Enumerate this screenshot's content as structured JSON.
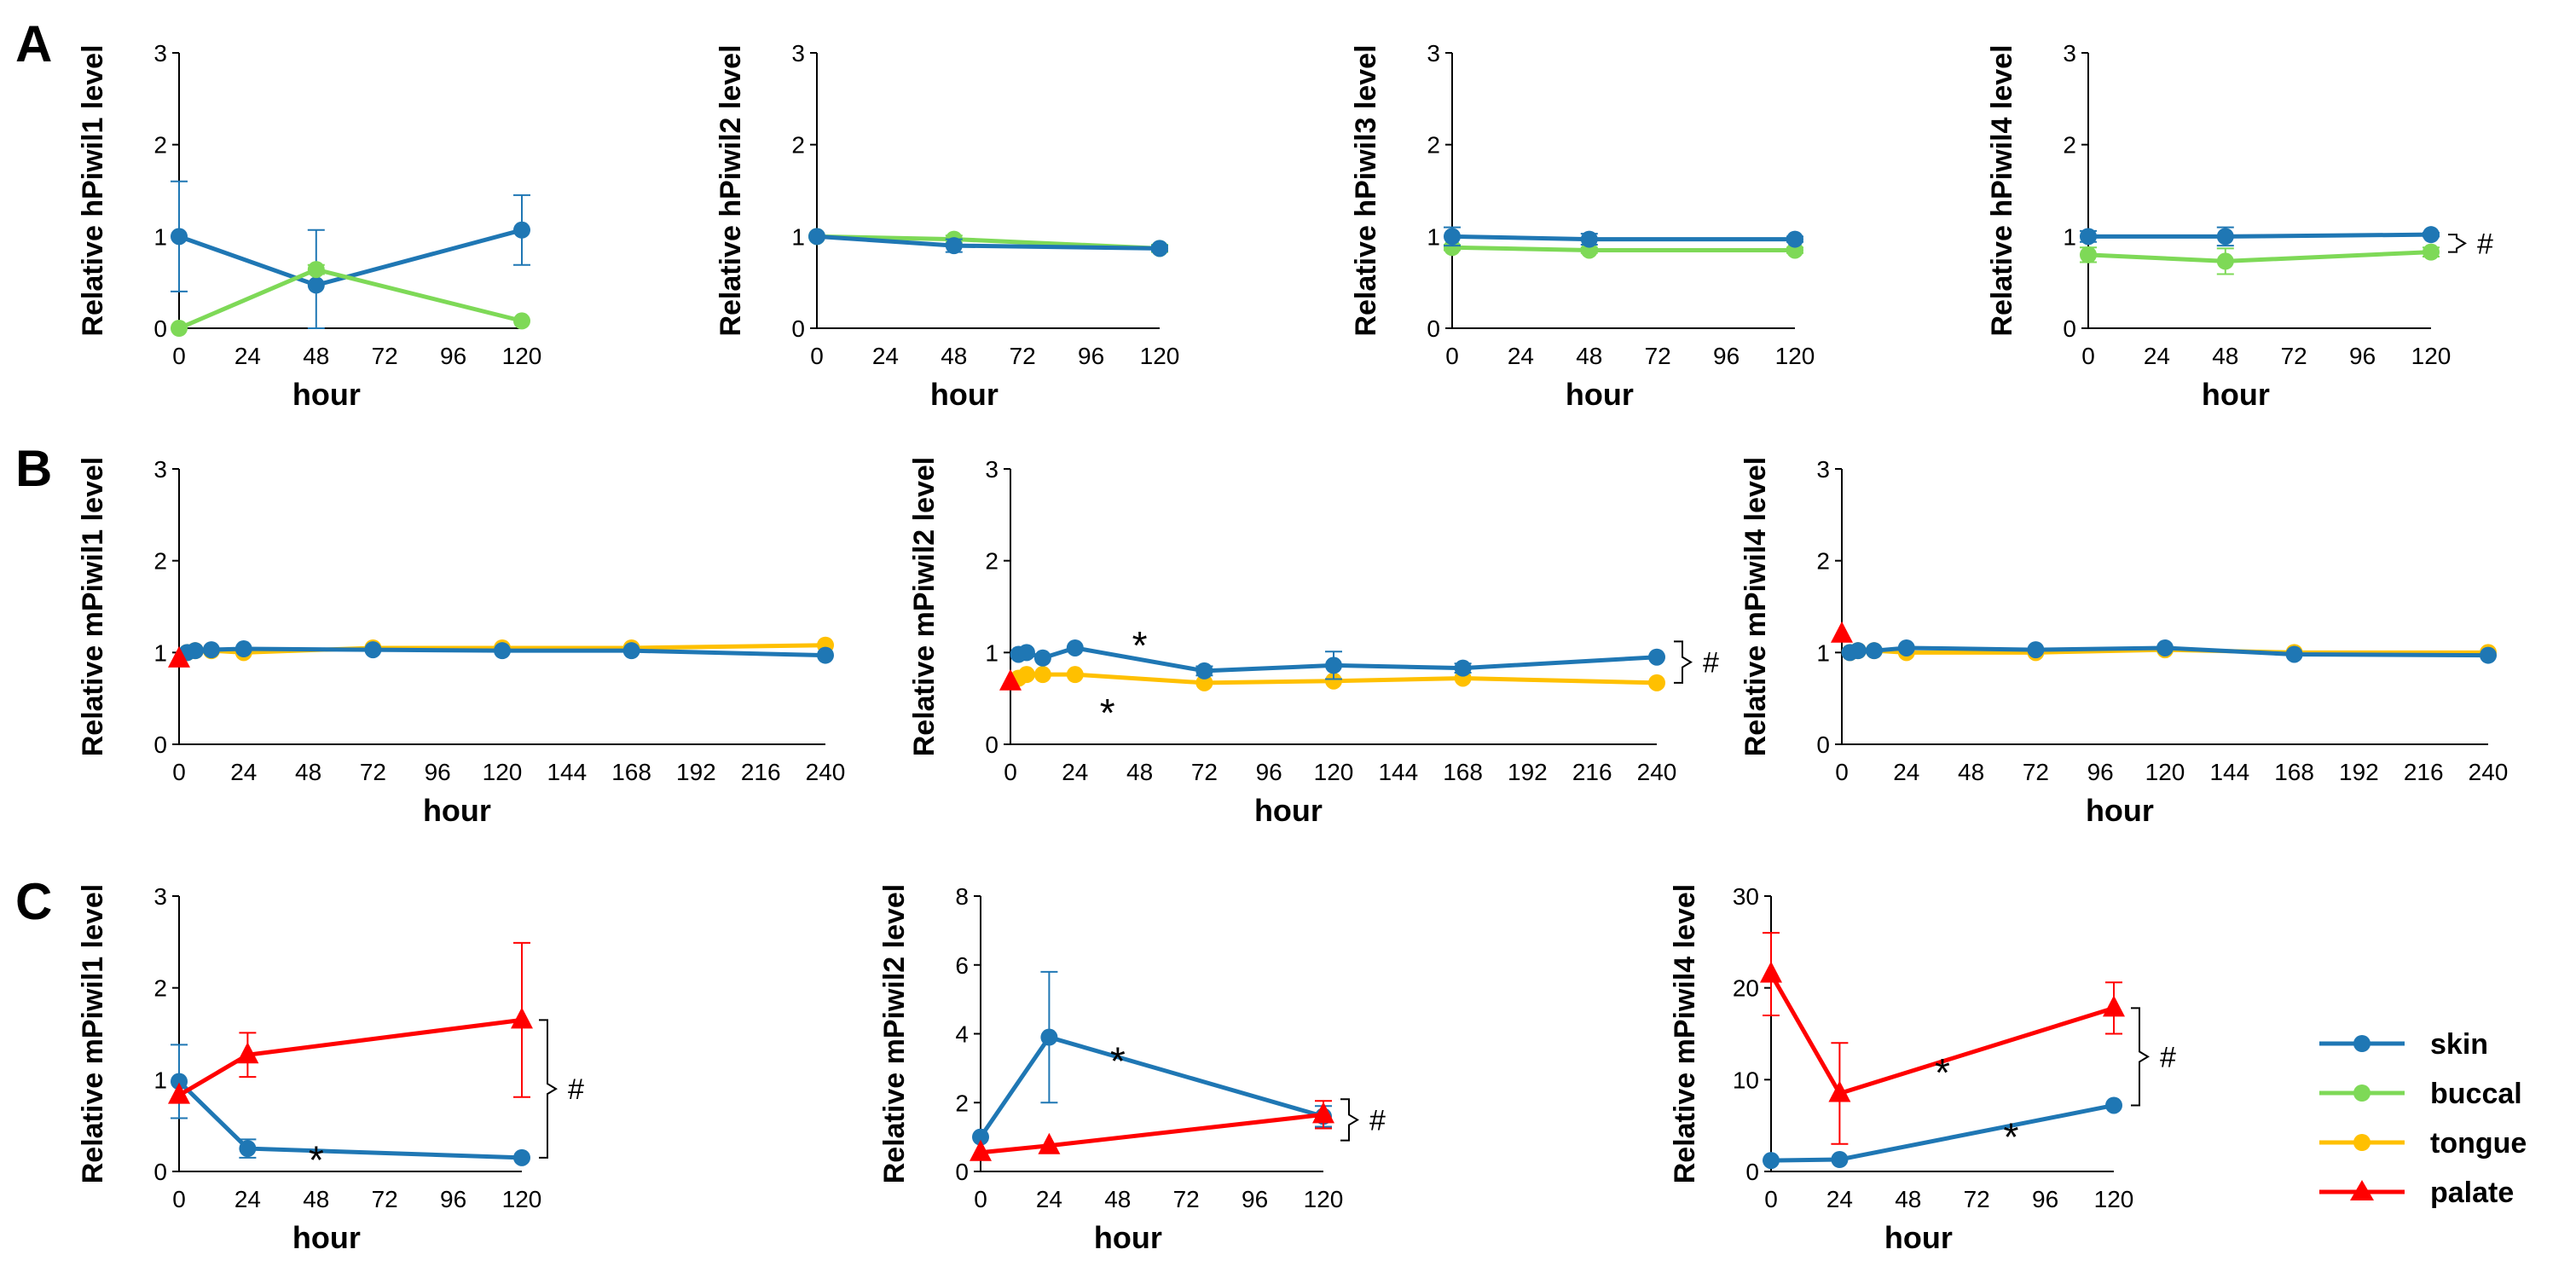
{
  "colors": {
    "skin": "#1f77b4",
    "buccal": "#7ed957",
    "tongue": "#ffc000",
    "palate": "#ff0000"
  },
  "panel_labels": [
    "A",
    "B",
    "C"
  ],
  "legend": [
    {
      "key": "skin",
      "label": "skin",
      "marker": "circle"
    },
    {
      "key": "buccal",
      "label": "buccal",
      "marker": "circle"
    },
    {
      "key": "tongue",
      "label": "tongue",
      "marker": "circle"
    },
    {
      "key": "palate",
      "label": "palate",
      "marker": "triangle"
    }
  ],
  "chart_data": [
    {
      "id": "A1",
      "type": "line",
      "ylabel": "Relative hPiwil1 level",
      "xlabel": "hour",
      "xlim": [
        0,
        120
      ],
      "xticks": [
        0,
        24,
        48,
        72,
        96,
        120
      ],
      "ylim": [
        0,
        3
      ],
      "yticks": [
        0,
        1,
        2,
        3
      ],
      "series": [
        {
          "name": "skin",
          "x": [
            0,
            48,
            120
          ],
          "y": [
            1.0,
            0.47,
            1.07
          ],
          "err": [
            0.6,
            0.6,
            0.38
          ]
        },
        {
          "name": "buccal",
          "x": [
            0,
            48,
            120
          ],
          "y": [
            0.0,
            0.64,
            0.08
          ],
          "err": [
            0,
            0.05,
            0
          ]
        }
      ],
      "annotations": []
    },
    {
      "id": "A2",
      "type": "line",
      "ylabel": "Relative hPiwil2 level",
      "xlabel": "hour",
      "xlim": [
        0,
        120
      ],
      "xticks": [
        0,
        24,
        48,
        72,
        96,
        120
      ],
      "ylim": [
        0,
        3
      ],
      "yticks": [
        0,
        1,
        2,
        3
      ],
      "series": [
        {
          "name": "buccal",
          "x": [
            0,
            48,
            120
          ],
          "y": [
            1.0,
            0.97,
            0.87
          ],
          "err": [
            0,
            0.04,
            0.04
          ]
        },
        {
          "name": "skin",
          "x": [
            0,
            48,
            120
          ],
          "y": [
            1.0,
            0.9,
            0.87
          ],
          "err": [
            0,
            0.07,
            0.03
          ]
        }
      ],
      "annotations": []
    },
    {
      "id": "A3",
      "type": "line",
      "ylabel": "Relative hPiwil3 level",
      "xlabel": "hour",
      "xlim": [
        0,
        120
      ],
      "xticks": [
        0,
        24,
        48,
        72,
        96,
        120
      ],
      "ylim": [
        0,
        3
      ],
      "yticks": [
        0,
        1,
        2,
        3
      ],
      "series": [
        {
          "name": "buccal",
          "x": [
            0,
            48,
            120
          ],
          "y": [
            0.88,
            0.85,
            0.85
          ],
          "err": [
            0.03,
            0.03,
            0.03
          ]
        },
        {
          "name": "skin",
          "x": [
            0,
            48,
            120
          ],
          "y": [
            1.0,
            0.97,
            0.97
          ],
          "err": [
            0.1,
            0.06,
            0.03
          ]
        }
      ],
      "annotations": []
    },
    {
      "id": "A4",
      "type": "line",
      "ylabel": "Relative hPiwil4 level",
      "xlabel": "hour",
      "xlim": [
        0,
        120
      ],
      "xticks": [
        0,
        24,
        48,
        72,
        96,
        120
      ],
      "ylim": [
        0,
        3
      ],
      "yticks": [
        0,
        1,
        2,
        3
      ],
      "series": [
        {
          "name": "buccal",
          "x": [
            0,
            48,
            120
          ],
          "y": [
            0.8,
            0.73,
            0.83
          ],
          "err": [
            0.08,
            0.14,
            0.05
          ]
        },
        {
          "name": "skin",
          "x": [
            0,
            48,
            120
          ],
          "y": [
            1.0,
            1.0,
            1.02
          ],
          "err": [
            0.06,
            0.1,
            0.02
          ]
        }
      ],
      "annotations": [
        {
          "text": "#",
          "kind": "bracket",
          "ylo": 0.83,
          "yhi": 1.02
        }
      ]
    },
    {
      "id": "B1",
      "type": "line",
      "ylabel": "Relative mPiwil1 level",
      "xlabel": "hour",
      "xlim": [
        0,
        240
      ],
      "xticks": [
        0,
        24,
        48,
        72,
        96,
        120,
        144,
        168,
        192,
        216,
        240
      ],
      "ylim": [
        0,
        3
      ],
      "yticks": [
        0,
        1,
        2,
        3
      ],
      "series": [
        {
          "name": "tongue",
          "x": [
            3,
            6,
            12,
            24,
            72,
            120,
            168,
            240
          ],
          "y": [
            1.0,
            1.02,
            1.02,
            1.0,
            1.05,
            1.05,
            1.05,
            1.08
          ],
          "err": [
            0,
            0,
            0,
            0,
            0,
            0,
            0,
            0
          ]
        },
        {
          "name": "skin",
          "x": [
            3,
            6,
            12,
            24,
            72,
            120,
            168,
            240
          ],
          "y": [
            1.0,
            1.02,
            1.03,
            1.04,
            1.03,
            1.02,
            1.02,
            0.97
          ],
          "err": [
            0,
            0,
            0,
            0,
            0,
            0,
            0,
            0
          ]
        },
        {
          "name": "palate",
          "x": [
            0
          ],
          "y": [
            0.93
          ],
          "err": [
            0
          ]
        }
      ],
      "annotations": []
    },
    {
      "id": "B2",
      "type": "line",
      "ylabel": "Relative mPiwil2 level",
      "xlabel": "hour",
      "xlim": [
        0,
        240
      ],
      "xticks": [
        0,
        24,
        48,
        72,
        96,
        120,
        144,
        168,
        192,
        216,
        240
      ],
      "ylim": [
        0,
        3
      ],
      "yticks": [
        0,
        1,
        2,
        3
      ],
      "series": [
        {
          "name": "tongue",
          "x": [
            3,
            6,
            12,
            24,
            72,
            120,
            168,
            240
          ],
          "y": [
            0.72,
            0.76,
            0.76,
            0.76,
            0.67,
            0.69,
            0.72,
            0.67
          ],
          "err": [
            0,
            0,
            0,
            0,
            0,
            0,
            0,
            0
          ]
        },
        {
          "name": "skin",
          "x": [
            3,
            6,
            12,
            24,
            72,
            120,
            168,
            240
          ],
          "y": [
            0.98,
            1.0,
            0.94,
            1.05,
            0.8,
            0.86,
            0.83,
            0.95
          ],
          "err": [
            0,
            0,
            0,
            0,
            0.05,
            0.15,
            0.05,
            0
          ]
        },
        {
          "name": "palate",
          "x": [
            0
          ],
          "y": [
            0.68
          ],
          "err": [
            0
          ]
        }
      ],
      "annotations": [
        {
          "text": "*",
          "x": 48,
          "y": 1.15
        },
        {
          "text": "*",
          "x": 36,
          "y": 0.42
        },
        {
          "text": "#",
          "kind": "bracket",
          "ylo": 0.67,
          "yhi": 1.12
        }
      ]
    },
    {
      "id": "B3",
      "type": "line",
      "ylabel": "Relative mPiwil4 level",
      "xlabel": "hour",
      "xlim": [
        0,
        240
      ],
      "xticks": [
        0,
        24,
        48,
        72,
        96,
        120,
        144,
        168,
        192,
        216,
        240
      ],
      "ylim": [
        0,
        3
      ],
      "yticks": [
        0,
        1,
        2,
        3
      ],
      "series": [
        {
          "name": "tongue",
          "x": [
            3,
            6,
            12,
            24,
            72,
            120,
            168,
            240
          ],
          "y": [
            1.0,
            1.02,
            1.02,
            1.0,
            1.0,
            1.03,
            1.0,
            1.0
          ],
          "err": [
            0,
            0,
            0,
            0,
            0,
            0,
            0,
            0
          ]
        },
        {
          "name": "skin",
          "x": [
            3,
            6,
            12,
            24,
            72,
            120,
            168,
            240
          ],
          "y": [
            1.0,
            1.02,
            1.02,
            1.05,
            1.03,
            1.05,
            0.98,
            0.97
          ],
          "err": [
            0,
            0,
            0,
            0,
            0,
            0,
            0,
            0
          ]
        },
        {
          "name": "palate",
          "x": [
            0
          ],
          "y": [
            1.2
          ],
          "err": [
            0
          ]
        }
      ],
      "annotations": []
    },
    {
      "id": "C1",
      "type": "line",
      "ylabel": "Relative mPiwil1 level",
      "xlabel": "hour",
      "xlim": [
        0,
        120
      ],
      "xticks": [
        0,
        24,
        48,
        72,
        96,
        120
      ],
      "ylim": [
        0,
        3
      ],
      "yticks": [
        0,
        1,
        2,
        3
      ],
      "series": [
        {
          "name": "skin",
          "x": [
            0,
            24,
            120
          ],
          "y": [
            0.98,
            0.25,
            0.15
          ],
          "err": [
            0.4,
            0.1,
            0
          ]
        },
        {
          "name": "palate",
          "x": [
            0,
            24,
            120
          ],
          "y": [
            0.83,
            1.27,
            1.65
          ],
          "err": [
            0,
            0.24,
            0.84
          ]
        }
      ],
      "annotations": [
        {
          "text": "*",
          "x": 48,
          "y": 0.2
        },
        {
          "text": "#",
          "kind": "bracket",
          "ylo": 0.15,
          "yhi": 1.65
        }
      ]
    },
    {
      "id": "C2",
      "type": "line",
      "ylabel": "Relative mPiwil2 level",
      "xlabel": "hour",
      "xlim": [
        0,
        120
      ],
      "xticks": [
        0,
        24,
        48,
        72,
        96,
        120
      ],
      "ylim": [
        0,
        8
      ],
      "yticks": [
        0,
        2,
        4,
        6,
        8
      ],
      "series": [
        {
          "name": "skin",
          "x": [
            0,
            24,
            120
          ],
          "y": [
            1.0,
            3.9,
            1.6
          ],
          "err": [
            0,
            1.9,
            0.3
          ]
        },
        {
          "name": "palate",
          "x": [
            0,
            24,
            120
          ],
          "y": [
            0.55,
            0.75,
            1.65
          ],
          "err": [
            0,
            0,
            0.4
          ]
        }
      ],
      "annotations": [
        {
          "text": "*",
          "x": 48,
          "y": 3.4
        },
        {
          "text": "#",
          "kind": "bracket",
          "ylo": 0.9,
          "yhi": 2.1
        }
      ]
    },
    {
      "id": "C3",
      "type": "line",
      "ylabel": "Relative mPiwil4 level",
      "xlabel": "hour",
      "xlim": [
        0,
        120
      ],
      "xticks": [
        0,
        24,
        48,
        72,
        96,
        120
      ],
      "ylim": [
        0,
        30
      ],
      "yticks": [
        0,
        10,
        20,
        30
      ],
      "series": [
        {
          "name": "skin",
          "x": [
            0,
            24,
            120
          ],
          "y": [
            1.2,
            1.3,
            7.2
          ],
          "err": [
            0,
            0,
            0
          ]
        },
        {
          "name": "palate",
          "x": [
            0,
            24,
            120
          ],
          "y": [
            21.5,
            8.5,
            17.8
          ],
          "err": [
            4.5,
            5.5,
            2.8
          ]
        }
      ],
      "annotations": [
        {
          "text": "*",
          "x": 60,
          "y": 11.5
        },
        {
          "text": "*",
          "x": 84,
          "y": 4.5
        },
        {
          "text": "#",
          "kind": "bracket",
          "ylo": 7.2,
          "yhi": 17.8
        }
      ]
    }
  ]
}
